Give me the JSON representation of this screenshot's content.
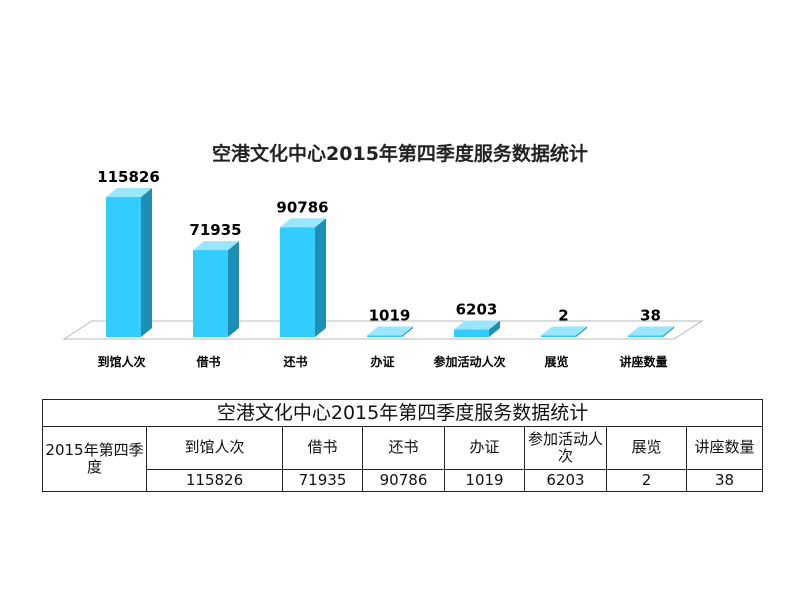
{
  "chart_data": {
    "type": "bar",
    "title": "空港文化中心2015年第四季度服务数据统计",
    "categories": [
      "到馆人次",
      "借书",
      "还书",
      "办证",
      "参加活动人次",
      "展览",
      "讲座数量"
    ],
    "series": [
      {
        "values": [
          115826,
          71935,
          90786,
          1019,
          6203,
          2,
          38
        ]
      }
    ],
    "value_labels": [
      "115826",
      "71935",
      "90786",
      "1019",
      "6203",
      "2",
      "38"
    ],
    "ylim": [
      0,
      120000
    ],
    "grid": false,
    "legend": "none",
    "colors": {
      "front": "#33CCFF",
      "side": "#1E8FB4",
      "top": "#9AE6FF",
      "floor": "#FFFFFF"
    }
  },
  "table": {
    "title": "空港文化中心2015年第四季度服务数据统计",
    "row_header": "2015年第四季度",
    "headers": [
      "到馆人次",
      "借书",
      "还书",
      "办证",
      "参加活动人次",
      "展览",
      "讲座数量"
    ],
    "values": [
      "115826",
      "71935",
      "90786",
      "1019",
      "6203",
      "2",
      "38"
    ]
  }
}
